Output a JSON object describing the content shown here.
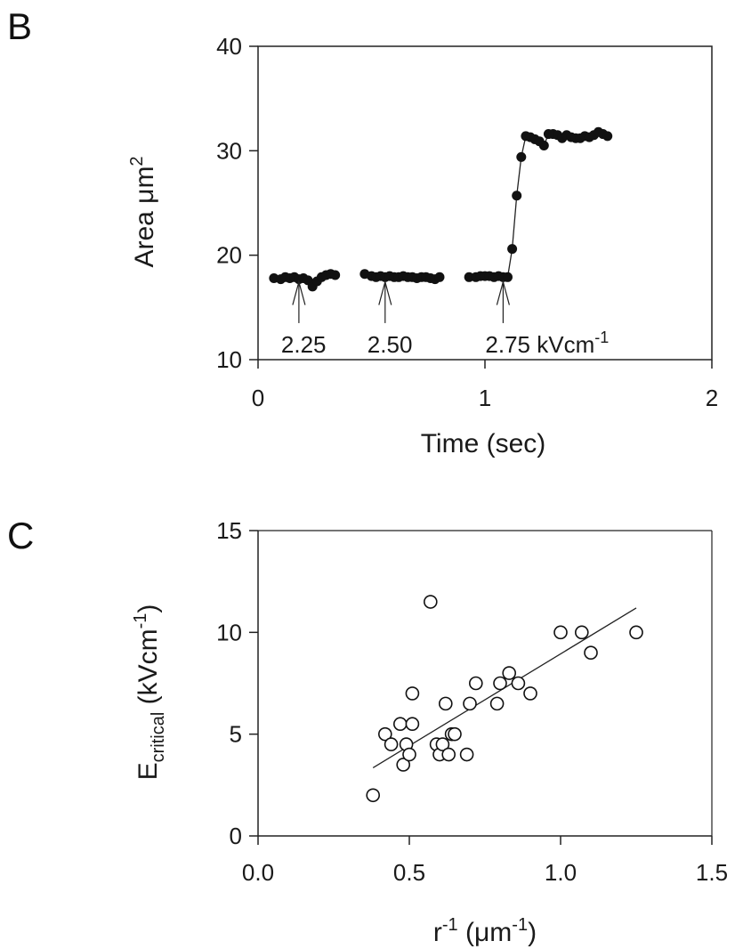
{
  "panels": {
    "b_label": "B",
    "c_label": "C"
  },
  "chart_data": [
    {
      "type": "scatter",
      "panel": "B",
      "title": "",
      "xlabel": "Time (sec)",
      "ylabel_main": "Area μm",
      "ylabel_sup": "2",
      "xlim": [
        0,
        2
      ],
      "ylim": [
        10,
        40
      ],
      "xticks": [
        0,
        1,
        2
      ],
      "xtick_labels": [
        "0",
        "1",
        "2"
      ],
      "yticks": [
        10,
        20,
        30,
        40
      ],
      "ytick_labels": [
        "10",
        "20",
        "30",
        "40"
      ],
      "grid": false,
      "marker": "filled-circle",
      "connected": true,
      "series": [
        {
          "x": [
            0.07,
            0.1,
            0.12,
            0.14,
            0.16,
            0.18,
            0.2,
            0.22,
            0.24,
            0.26,
            0.28,
            0.3,
            0.32,
            0.34
          ],
          "y": [
            17.8,
            17.7,
            17.9,
            17.8,
            17.9,
            17.7,
            17.8,
            17.6,
            17.0,
            17.5,
            17.9,
            18.1,
            18.2,
            18.1
          ]
        },
        {
          "x": [
            0.47,
            0.5,
            0.52,
            0.54,
            0.56,
            0.58,
            0.6,
            0.62,
            0.64,
            0.66,
            0.68,
            0.7,
            0.72,
            0.74,
            0.76,
            0.78,
            0.8
          ],
          "y": [
            18.2,
            18.0,
            17.9,
            18.0,
            17.9,
            18.0,
            17.9,
            17.9,
            18.0,
            17.9,
            17.9,
            17.8,
            17.9,
            17.9,
            17.8,
            17.7,
            17.9
          ]
        },
        {
          "x": [
            0.93,
            0.96,
            0.98,
            1.0,
            1.02,
            1.04,
            1.06,
            1.08,
            1.1,
            1.12,
            1.14,
            1.16,
            1.18,
            1.2,
            1.22,
            1.24,
            1.26,
            1.28,
            1.3,
            1.32,
            1.34,
            1.36,
            1.38,
            1.4,
            1.42,
            1.44,
            1.46,
            1.48,
            1.5,
            1.52,
            1.54
          ],
          "y": [
            17.9,
            17.9,
            18.0,
            18.0,
            18.0,
            17.9,
            18.0,
            17.9,
            17.9,
            20.6,
            25.7,
            29.4,
            31.4,
            31.3,
            31.1,
            30.9,
            30.5,
            31.6,
            31.6,
            31.5,
            31.2,
            31.5,
            31.3,
            31.2,
            31.2,
            31.4,
            31.3,
            31.5,
            31.8,
            31.6,
            31.4
          ]
        }
      ],
      "annotations": [
        {
          "x": 0.18,
          "label": "2.25"
        },
        {
          "x": 0.56,
          "label": "2.50"
        },
        {
          "x": 1.08,
          "label": "2.75",
          "unit_main": "kVcm",
          "unit_sup": "-1"
        }
      ]
    },
    {
      "type": "scatter",
      "panel": "C",
      "title": "",
      "xlabel_main": "r",
      "xlabel_sup": "-1",
      "xlabel_unit_main": " (μm",
      "xlabel_unit_sup": "-1",
      "xlabel_unit_close": ")",
      "ylabel_main": "E",
      "ylabel_sub": "critical",
      "ylabel_unit_main": " (kVcm",
      "ylabel_unit_sup": "-1",
      "ylabel_unit_close": ")",
      "xlim": [
        0,
        1.5
      ],
      "ylim": [
        0,
        15
      ],
      "xticks": [
        0,
        0.5,
        1.0,
        1.5
      ],
      "xtick_labels": [
        "0.0",
        "0.5",
        "1.0",
        "1.5"
      ],
      "yticks": [
        0,
        5,
        10,
        15
      ],
      "ytick_labels": [
        "0",
        "5",
        "10",
        "15"
      ],
      "grid": false,
      "marker": "open-circle",
      "points": {
        "x": [
          0.38,
          0.42,
          0.44,
          0.47,
          0.48,
          0.49,
          0.5,
          0.51,
          0.51,
          0.57,
          0.59,
          0.6,
          0.61,
          0.62,
          0.63,
          0.64,
          0.65,
          0.69,
          0.7,
          0.72,
          0.79,
          0.8,
          0.83,
          0.86,
          0.9,
          1.0,
          1.07,
          1.1,
          1.25
        ],
        "y": [
          2.0,
          5.0,
          4.5,
          5.5,
          3.5,
          4.5,
          4.0,
          7.0,
          5.5,
          11.5,
          4.5,
          4.0,
          4.5,
          6.5,
          4.0,
          5.0,
          5.0,
          4.0,
          6.5,
          7.5,
          6.5,
          7.5,
          8.0,
          7.5,
          7.0,
          10.0,
          10.0,
          9.0,
          10.0
        ]
      },
      "fit_line": {
        "x": [
          0.38,
          1.25
        ],
        "y": [
          3.35,
          11.2
        ]
      }
    }
  ]
}
